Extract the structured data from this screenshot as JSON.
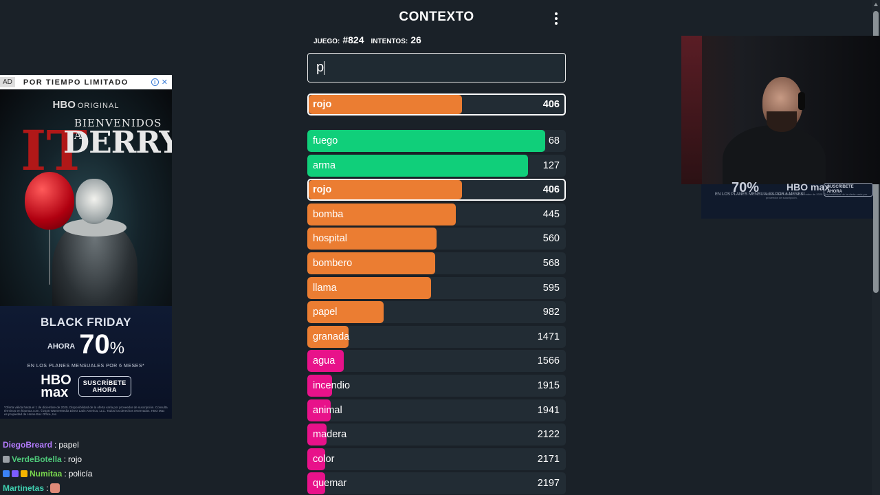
{
  "ad": {
    "tag": "AD",
    "limited": "POR TIEMPO LIMITADO",
    "info": "i",
    "close": "✕",
    "hbo_original_brand": "HBO",
    "hbo_original_label": "ORIGINAL",
    "it_logo": "IT",
    "bienvenidos": "BIENVENIDOS A",
    "derry": "DERRY",
    "black_friday": "BLACK FRIDAY",
    "ahora": "AHORA",
    "percent": "70",
    "percent_sign": "%",
    "plans": "EN LOS PLANES MENSUALES POR 6 MESES*",
    "hbomax_1": "HBO",
    "hbomax_2": "max",
    "subscribe_1": "SUSCRÍBETE",
    "subscribe_2": "AHORA",
    "fine_print": "*Oferta válida hasta el 1 de diciembre de 2025. Disponibilidad de la oferta varía por proveedor de suscripción. Consulta términos en hbomax.com. ©2025 WarnerMedia Direct Latin America, LLC. Todos los derechos reservados. HBO Max es propiedad de Home Box Office, Inc."
  },
  "chat": [
    {
      "user": "DiegoBreard",
      "color": "#b57cff",
      "message": "papel",
      "badges": []
    },
    {
      "user": "VerdeBotella",
      "color": "#4ec97a",
      "message": "rojo",
      "badges": [
        "#9aa0a6"
      ]
    },
    {
      "user": "Numitaa",
      "color": "#7ad94e",
      "message": "policía",
      "badges": [
        "#3b82f6",
        "#7c5cff",
        "#f5b400"
      ]
    },
    {
      "user": "Martinetas",
      "color": "#3fd0b0",
      "message": "",
      "badges": [],
      "emote": true
    }
  ],
  "game": {
    "title": "CONTEXTO",
    "menu_icon": "kebab-menu-icon",
    "game_label": "JUEGO:",
    "game_number": "#824",
    "attempts_label": "INTENTOS:",
    "attempts": "26",
    "input_value": "p",
    "colors": {
      "green": "#10cf7a",
      "orange": "#eb7d32",
      "pink": "#e8128a",
      "row_bg": "#222c34"
    },
    "last_guess": {
      "word": "rojo",
      "rank": 406,
      "fill": 0.6,
      "color": "orange"
    },
    "guesses": [
      {
        "word": "fuego",
        "rank": 68,
        "fill": 0.92,
        "color": "green"
      },
      {
        "word": "arma",
        "rank": 127,
        "fill": 0.855,
        "color": "green"
      },
      {
        "word": "rojo",
        "rank": 406,
        "fill": 0.6,
        "color": "orange",
        "highlight": true
      },
      {
        "word": "bomba",
        "rank": 445,
        "fill": 0.575,
        "color": "orange"
      },
      {
        "word": "hospital",
        "rank": 560,
        "fill": 0.5,
        "color": "orange"
      },
      {
        "word": "bombero",
        "rank": 568,
        "fill": 0.495,
        "color": "orange"
      },
      {
        "word": "llama",
        "rank": 595,
        "fill": 0.48,
        "color": "orange"
      },
      {
        "word": "papel",
        "rank": 982,
        "fill": 0.295,
        "color": "orange"
      },
      {
        "word": "granada",
        "rank": 1471,
        "fill": 0.16,
        "color": "orange"
      },
      {
        "word": "agua",
        "rank": 1566,
        "fill": 0.14,
        "color": "pink"
      },
      {
        "word": "incendio",
        "rank": 1915,
        "fill": 0.095,
        "color": "pink"
      },
      {
        "word": "animal",
        "rank": 1941,
        "fill": 0.09,
        "color": "pink"
      },
      {
        "word": "madera",
        "rank": 2122,
        "fill": 0.075,
        "color": "pink"
      },
      {
        "word": "color",
        "rank": 2171,
        "fill": 0.07,
        "color": "pink"
      },
      {
        "word": "quemar",
        "rank": 2197,
        "fill": 0.068,
        "color": "pink"
      }
    ]
  },
  "cam_overlay": {
    "percent": "70%",
    "brand": "HBO max",
    "subscribe": "SUSCRÍBETE AHORA",
    "plans": "EN LOS PLANES MENSUALES POR 6 MESES*",
    "fine_print": "*Oferta válida hasta el 1 de diciembre de 2025. Disponibilidad de la oferta varía por proveedor de suscripción."
  }
}
